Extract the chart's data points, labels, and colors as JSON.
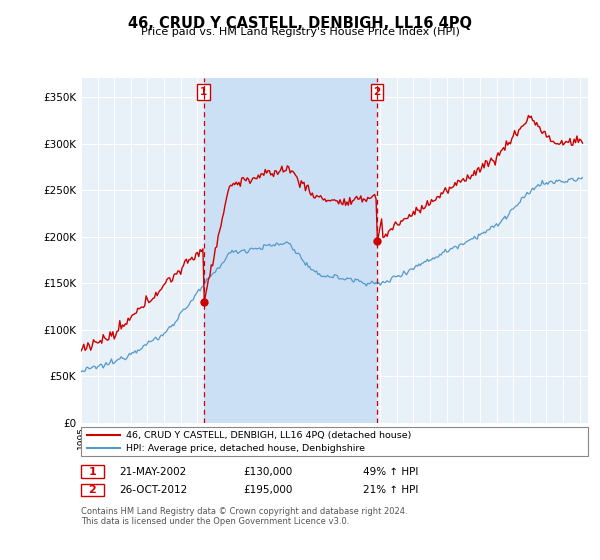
{
  "title": "46, CRUD Y CASTELL, DENBIGH, LL16 4PQ",
  "subtitle": "Price paid vs. HM Land Registry's House Price Index (HPI)",
  "ylim": [
    0,
    370000
  ],
  "yticks": [
    0,
    50000,
    100000,
    150000,
    200000,
    250000,
    300000,
    350000
  ],
  "xlim_start": 1995.0,
  "xlim_end": 2025.5,
  "sale1_date": 2002.38,
  "sale1_price": 130000,
  "sale1_label": "1",
  "sale1_date_str": "21-MAY-2002",
  "sale2_date": 2012.82,
  "sale2_price": 195000,
  "sale2_label": "2",
  "sale2_date_str": "26-OCT-2012",
  "red_color": "#cc0000",
  "blue_color": "#5599cc",
  "shade_color": "#cce0f5",
  "bg_color": "#e8f0f8",
  "grid_color": "#d0d0d0",
  "legend1": "46, CRUD Y CASTELL, DENBIGH, LL16 4PQ (detached house)",
  "legend2": "HPI: Average price, detached house, Denbighshire",
  "footer": "Contains HM Land Registry data © Crown copyright and database right 2024.\nThis data is licensed under the Open Government Licence v3.0.",
  "footnote1_label": "1",
  "footnote1_date": "21-MAY-2002",
  "footnote1_price": "£130,000",
  "footnote1_pct": "49% ↑ HPI",
  "footnote2_label": "2",
  "footnote2_date": "26-OCT-2012",
  "footnote2_price": "£195,000",
  "footnote2_pct": "21% ↑ HPI"
}
